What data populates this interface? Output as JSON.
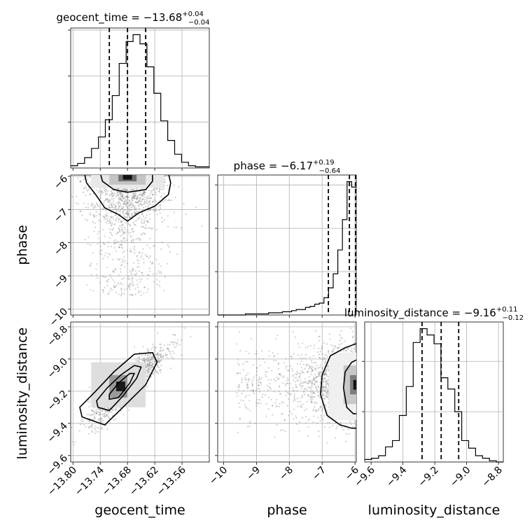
{
  "chart_data": {
    "type": "corner",
    "parameters": [
      "geocent_time",
      "phase",
      "luminosity_distance"
    ],
    "titles": [
      {
        "param": "geocent_time",
        "label": "geocent_time = −13.68",
        "plus": "+0.04",
        "minus": "−0.04"
      },
      {
        "param": "phase",
        "label": "phase = −6.17",
        "plus": "+0.19",
        "minus": "−0.64"
      },
      {
        "param": "luminosity_distance",
        "label": "luminosity_distance = −9.16",
        "plus": "+0.11",
        "minus": "−0.12"
      }
    ],
    "axis_labels": {
      "x": [
        "geocent_time",
        "phase",
        "luminosity_distance"
      ],
      "y": [
        "phase",
        "luminosity_distance"
      ]
    },
    "ranges": {
      "geocent_time": [
        -13.805,
        -13.5
      ],
      "phase": [
        -10.18,
        -5.96
      ],
      "luminosity_distance": [
        -9.64,
        -8.77
      ]
    },
    "ticks": {
      "geocent_time": {
        "values": [
          -13.8,
          -13.74,
          -13.68,
          -13.62,
          -13.56
        ],
        "labels": [
          "−13.80",
          "−13.74",
          "−13.68",
          "−13.62",
          "−13.56"
        ]
      },
      "phase": {
        "values": [
          -10,
          -9,
          -8,
          -7,
          -6
        ],
        "labels": [
          "−10",
          "−9",
          "−8",
          "−7",
          "−6"
        ]
      },
      "luminosity_distance": {
        "values": [
          -9.6,
          -9.4,
          -9.2,
          -9.0,
          -8.8
        ],
        "labels": [
          "−9.6",
          "−9.4",
          "−9.2",
          "−9.0",
          "−8.8"
        ]
      }
    },
    "quantiles": {
      "geocent_time": [
        -13.72,
        -13.68,
        -13.64
      ],
      "phase": [
        -6.81,
        -6.17,
        -5.98
      ],
      "luminosity_distance": [
        -9.28,
        -9.16,
        -9.05
      ]
    },
    "histograms": {
      "geocent_time": {
        "edges_range": [
          -13.805,
          -13.5
        ],
        "counts": [
          2,
          4,
          9,
          17,
          27,
          42,
          63,
          91,
          110,
          116,
          108,
          88,
          65,
          41,
          24,
          12,
          5,
          2,
          1,
          1
        ]
      },
      "phase": {
        "edges_range": [
          -10.18,
          -5.96
        ],
        "counts": [
          0,
          0,
          0,
          0,
          0,
          0,
          1,
          1,
          1,
          1,
          1,
          2,
          2,
          2,
          3,
          3,
          4,
          5,
          5,
          7,
          8,
          10,
          11,
          16,
          25,
          38,
          60,
          88,
          123,
          118
        ]
      },
      "luminosity_distance": {
        "edges_range": [
          -9.64,
          -8.77
        ],
        "counts": [
          2,
          3,
          5,
          12,
          17,
          37,
          60,
          95,
          106,
          101,
          94,
          67,
          58,
          40,
          17,
          11,
          5,
          3,
          1,
          0
        ]
      }
    },
    "contour_levels": [
      "39%",
      "86%"
    ],
    "grid": true
  }
}
